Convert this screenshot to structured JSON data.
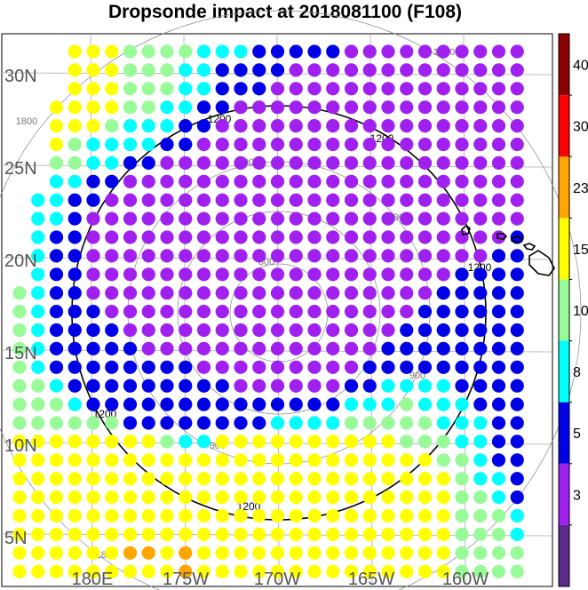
{
  "chart_data": {
    "type": "scatter",
    "title": "Dropsonde impact at 2018081100 (F108)",
    "x_ticks": [
      "180E",
      "175W",
      "170W",
      "165W",
      "160W"
    ],
    "y_ticks": [
      "5N",
      "10N",
      "15N",
      "20N",
      "25N",
      "30N"
    ],
    "range_ring_labels": [
      "300",
      "900",
      "900",
      "900",
      "900",
      "1200",
      "1200",
      "1200",
      "1200",
      "1200",
      "1800",
      "1800",
      "1800"
    ],
    "highlight_ring": "1200",
    "colorbar": {
      "levels": [
        "3",
        "5",
        "8",
        "10",
        "15",
        "23",
        "30",
        "40"
      ],
      "colors": [
        "#5a2a8c",
        "#a020f0",
        "#0000e6",
        "#00ffff",
        "#98fb98",
        "#ffff00",
        "#ffa500",
        "#ff0000",
        "#8b0000"
      ]
    },
    "grid": {
      "cols": 29,
      "rows": 29,
      "legend_order": "low-to-high",
      "values": [
        "5555555556555555555555554444X",
        "5555556656555555555555554444X",
        "5555555555555555555555554443X",
        "5555555555555555555555554443X",
        "5555555555555555555555554432X",
        "5555555555555555555555554332X",
        "5555555555555555555555544322X",
        "5555555543355555555554443322X",
        "4444442222222233334444433322X",
        "4443222222222222223334333222X",
        "4432222222221111112233332222X",
        "4322222222111111111222222222X",
        "4322222111111111111122222222X",
        "4322221111111111111112222222X",
        "4322211111111111111111222222X",
        "4322111111111111111111122222X",
        "X322111111111111111111112222X",
        "X322111111111111111111111122X",
        "X322111111111111111111111112X",
        "X332111111111111111111111111X",
        "X332211111111111111111111111X",
        "XX33221111111111111111111111X",
        "XX44332211111111111111111111X",
        "XX54333322111111111111111111X",
        "XX55543332211111111111111111X",
        "XX55554433221111111111111111X",
        "XXX5554443322211111111111111X",
        "XXX5554443322221111111111111X",
        "XXX5554444333222221111111111X"
      ]
    }
  }
}
